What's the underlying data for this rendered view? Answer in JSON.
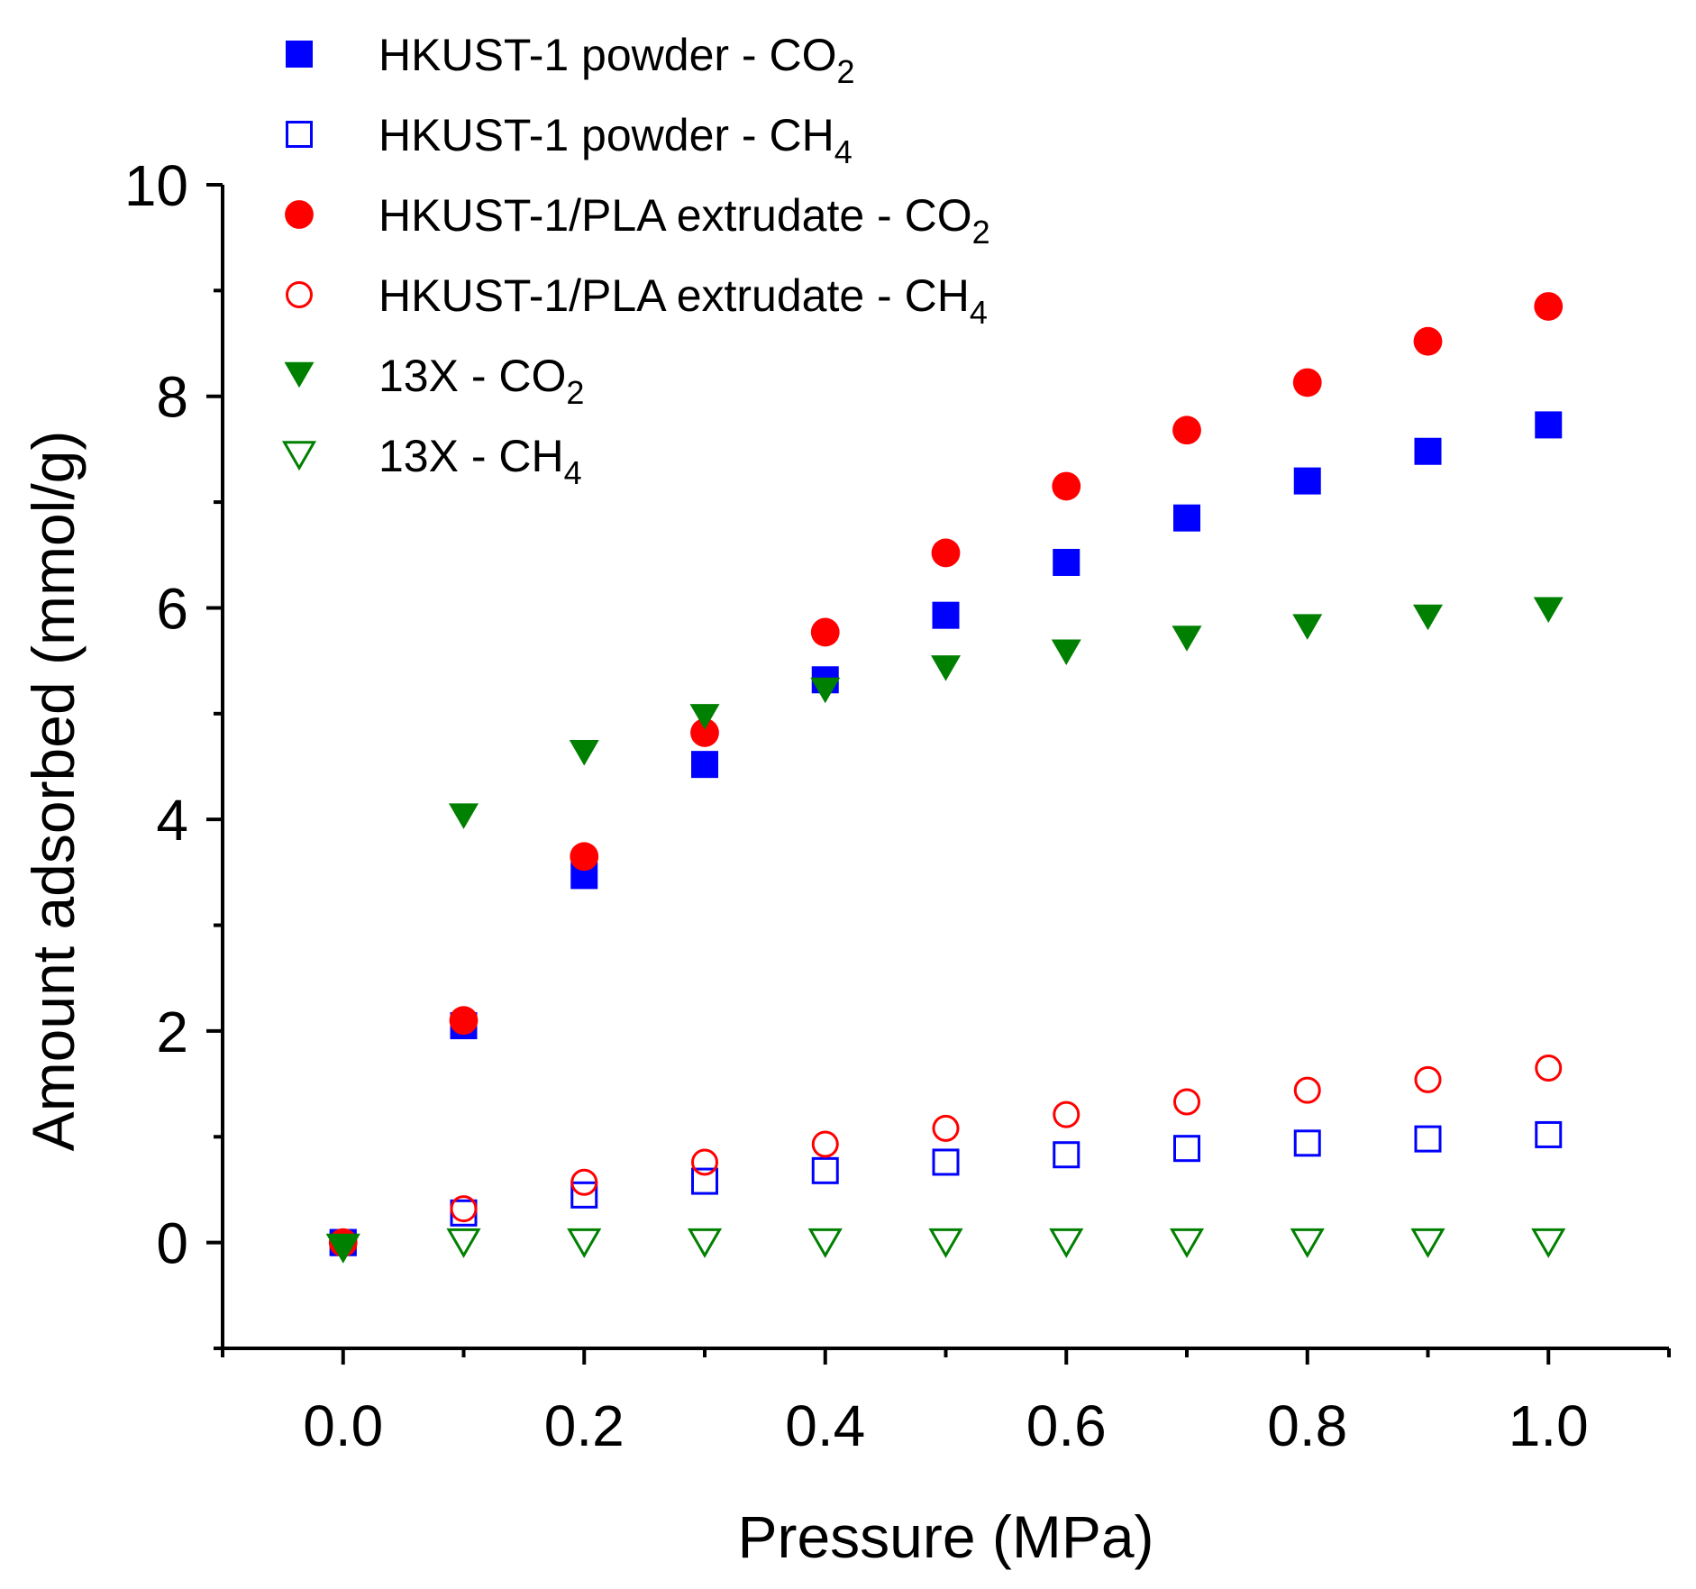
{
  "chart_data": {
    "type": "scatter",
    "title": "",
    "xlabel": "Pressure (MPa)",
    "ylabel": "Amount adsorbed (mmol/g)",
    "xlim": [
      -0.1,
      1.1
    ],
    "ylim": [
      -1,
      10
    ],
    "x_major_ticks": [
      0.0,
      0.2,
      0.4,
      0.6,
      0.8,
      1.0
    ],
    "x_tick_labels": [
      "0.0",
      "0.2",
      "0.4",
      "0.6",
      "0.8",
      "1.0"
    ],
    "x_minor_ticks": [
      -0.1,
      0.1,
      0.3,
      0.5,
      0.7,
      0.9,
      1.1
    ],
    "y_major_ticks": [
      0,
      2,
      4,
      6,
      8,
      10
    ],
    "y_tick_labels": [
      "0",
      "2",
      "4",
      "6",
      "8",
      "10"
    ],
    "y_minor_ticks": [
      -1,
      1,
      3,
      5,
      7,
      9
    ],
    "grid": false,
    "legend_position": "top-left",
    "series": [
      {
        "name_main": "HKUST-1 powder - CO",
        "name_sub": "2",
        "marker": "square",
        "filled": true,
        "color": "#0000ff",
        "x": [
          0.0,
          0.1,
          0.2,
          0.3,
          0.4,
          0.5,
          0.6,
          0.7,
          0.8,
          0.9,
          1.0
        ],
        "y": [
          0.0,
          2.05,
          3.47,
          4.52,
          5.32,
          5.93,
          6.43,
          6.85,
          7.2,
          7.48,
          7.73
        ]
      },
      {
        "name_main": "HKUST-1 powder - CH",
        "name_sub": "4",
        "marker": "square",
        "filled": false,
        "color": "#0000ff",
        "x": [
          0.0,
          0.1,
          0.2,
          0.3,
          0.4,
          0.5,
          0.6,
          0.7,
          0.8,
          0.9,
          1.0
        ],
        "y": [
          0.0,
          0.28,
          0.45,
          0.58,
          0.68,
          0.76,
          0.83,
          0.89,
          0.94,
          0.98,
          1.02
        ]
      },
      {
        "name_main": "HKUST-1/PLA extrudate - CO",
        "name_sub": "2",
        "marker": "circle",
        "filled": true,
        "color": "#ff0000",
        "x": [
          0.0,
          0.1,
          0.2,
          0.3,
          0.4,
          0.5,
          0.6,
          0.7,
          0.8,
          0.9,
          1.0
        ],
        "y": [
          0.0,
          2.1,
          3.65,
          4.82,
          5.77,
          6.52,
          7.15,
          7.68,
          8.13,
          8.52,
          8.85
        ]
      },
      {
        "name_main": "HKUST-1/PLA extrudate - CH",
        "name_sub": "4",
        "marker": "circle",
        "filled": false,
        "color": "#ff0000",
        "x": [
          0.0,
          0.1,
          0.2,
          0.3,
          0.4,
          0.5,
          0.6,
          0.7,
          0.8,
          0.9,
          1.0
        ],
        "y": [
          0.0,
          0.32,
          0.57,
          0.76,
          0.93,
          1.08,
          1.21,
          1.33,
          1.44,
          1.54,
          1.65
        ]
      },
      {
        "name_main": "13X - CO",
        "name_sub": "2",
        "marker": "triangle-down",
        "filled": true,
        "color": "#008000",
        "x": [
          0.0,
          0.1,
          0.2,
          0.3,
          0.4,
          0.5,
          0.6,
          0.7,
          0.8,
          0.9,
          1.0
        ],
        "y": [
          -0.05,
          4.03,
          4.63,
          4.97,
          5.22,
          5.43,
          5.58,
          5.71,
          5.82,
          5.91,
          5.98
        ]
      },
      {
        "name_main": "13X - CH",
        "name_sub": "4",
        "marker": "triangle-down",
        "filled": false,
        "color": "#008000",
        "x": [
          0.0,
          0.1,
          0.2,
          0.3,
          0.4,
          0.5,
          0.6,
          0.7,
          0.8,
          0.9,
          1.0
        ],
        "y": [
          -0.05,
          0.0,
          0.0,
          0.0,
          0.0,
          0.0,
          0.0,
          0.0,
          0.0,
          0.0,
          0.0
        ]
      }
    ]
  }
}
